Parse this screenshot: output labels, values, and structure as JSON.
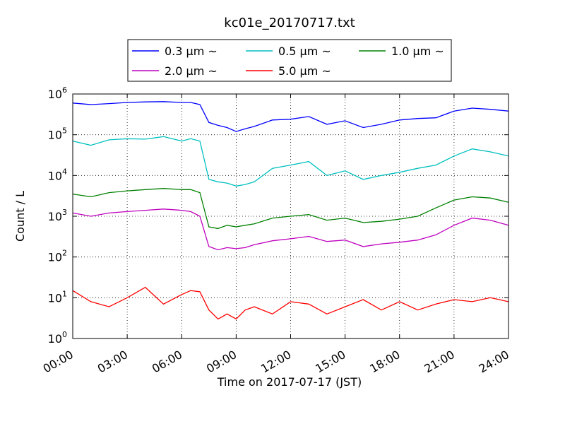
{
  "chart_data": {
    "type": "line",
    "title": "kc01e_20170717.txt",
    "xlabel": "Time on 2017-07-17 (JST)",
    "ylabel": "Count / L",
    "yscale": "log",
    "ylim": [
      1,
      1000000
    ],
    "xlim_hours": [
      0,
      24
    ],
    "x_tick_labels": [
      "00:00",
      "03:00",
      "06:00",
      "09:00",
      "12:00",
      "15:00",
      "18:00",
      "21:00",
      "24:00"
    ],
    "y_tick_exponents": [
      "0",
      "1",
      "2",
      "3",
      "4",
      "5",
      "6"
    ],
    "y_tick_base": "10",
    "grid": true,
    "legend_position": "top",
    "x_hours": [
      0,
      1,
      2,
      3,
      4,
      5,
      6,
      6.5,
      7,
      7.5,
      8,
      8.5,
      9,
      9.5,
      10,
      11,
      12,
      13,
      14,
      15,
      16,
      17,
      18,
      19,
      20,
      21,
      22,
      23,
      24
    ],
    "series": [
      {
        "name": "0.3 μm ~",
        "color": "#0000ff",
        "values": [
          600000,
          550000,
          580000,
          620000,
          640000,
          650000,
          620000,
          620000,
          550000,
          200000,
          170000,
          150000,
          120000,
          140000,
          160000,
          230000,
          240000,
          280000,
          180000,
          220000,
          150000,
          180000,
          230000,
          250000,
          260000,
          380000,
          450000,
          420000,
          380000
        ]
      },
      {
        "name": "0.5 μm ~",
        "color": "#00bfbf",
        "values": [
          70000,
          55000,
          75000,
          80000,
          78000,
          90000,
          70000,
          80000,
          70000,
          8000,
          7000,
          6500,
          5500,
          6000,
          7000,
          15000,
          18000,
          22000,
          10000,
          13000,
          8000,
          10000,
          12000,
          15000,
          18000,
          30000,
          45000,
          38000,
          30000
        ]
      },
      {
        "name": "1.0 μm ~",
        "color": "#008000",
        "values": [
          3500,
          3000,
          3800,
          4200,
          4500,
          4800,
          4500,
          4500,
          3800,
          550,
          500,
          600,
          550,
          600,
          650,
          900,
          1000,
          1100,
          800,
          900,
          700,
          750,
          850,
          1000,
          1600,
          2500,
          3000,
          2800,
          2200
        ]
      },
      {
        "name": "2.0 μm ~",
        "color": "#bf00bf",
        "values": [
          1200,
          1000,
          1200,
          1300,
          1400,
          1500,
          1400,
          1300,
          1000,
          180,
          150,
          170,
          160,
          170,
          200,
          250,
          280,
          320,
          240,
          260,
          180,
          210,
          230,
          260,
          350,
          600,
          900,
          800,
          600
        ]
      },
      {
        "name": "5.0 μm ~",
        "color": "#ff0000",
        "values": [
          15,
          8,
          6,
          10,
          18,
          7,
          12,
          15,
          14,
          5,
          3,
          4,
          3,
          5,
          6,
          4,
          8,
          7,
          4,
          6,
          9,
          5,
          8,
          5,
          7,
          9,
          8,
          10,
          8
        ]
      }
    ]
  }
}
